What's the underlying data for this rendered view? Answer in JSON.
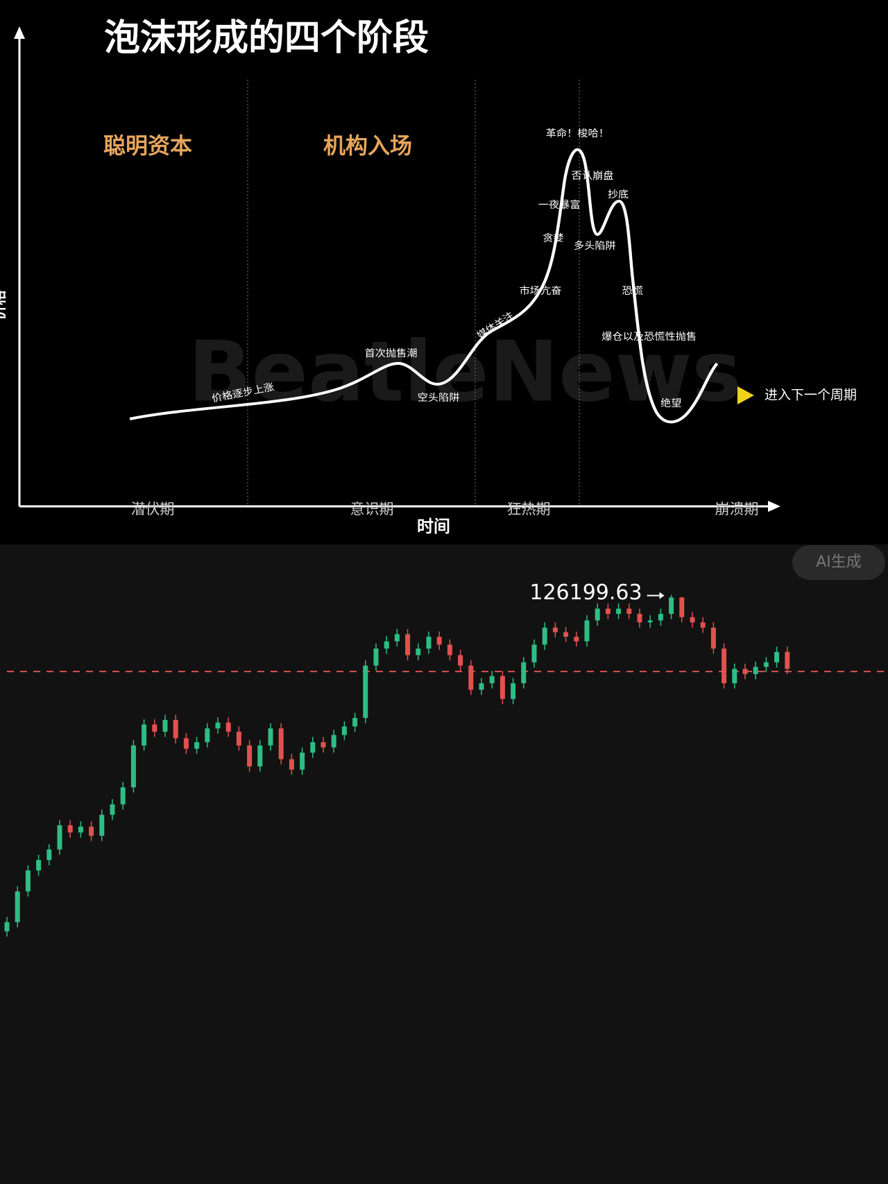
{
  "diagram": {
    "title": "泡沫形成的四个阶段",
    "y_axis_label": "价格",
    "x_axis_label": "时间",
    "headers": [
      "聪明资本",
      "机构入场"
    ],
    "phases": [
      "潜伏期",
      "意识期",
      "狂热期",
      "崩溃期"
    ],
    "annotations": [
      "革命！梭哈！",
      "否认崩盘",
      "抄底",
      "一夜暴富",
      "贪婪",
      "多头陷阱",
      "市场亢奋",
      "恐慌",
      "媒体关注",
      "爆仓以及恐慌性抛售",
      "首次抛售潮",
      "空头陷阱",
      "价格逐步上涨",
      "绝望"
    ],
    "next_cycle": "进入下一个周期",
    "watermark": "BeatleNews",
    "badge": "AI生成"
  },
  "chart_data": {
    "type": "candlestick",
    "up_color": "#2ebd85",
    "down_color": "#e0524f",
    "ylim": [
      36200,
      133900
    ],
    "hline": 114500,
    "open": [
      74800,
      76200,
      80900,
      84100,
      85700,
      87300,
      91000,
      89900,
      90800,
      89400,
      92600,
      94200,
      96800,
      103200,
      106400,
      105300,
      107100,
      104300,
      102700,
      103700,
      105800,
      106700,
      105300,
      103200,
      100000,
      103200,
      105800,
      101100,
      99500,
      102100,
      103700,
      102900,
      104800,
      106100,
      107400,
      115400,
      118000,
      119100,
      120200,
      117000,
      118000,
      119800,
      118600,
      117000,
      115400,
      111700,
      112700,
      113800,
      110300,
      112700,
      115900,
      118600,
      121200,
      120500,
      119800,
      119100,
      122300,
      124100,
      123300,
      124100,
      123300,
      122000,
      122300,
      123300,
      125800,
      122800,
      122000,
      121200,
      118000,
      112700,
      114900,
      114100,
      115200,
      115900,
      117500
    ],
    "high": [
      77000,
      81700,
      84900,
      86500,
      88100,
      91800,
      91800,
      91600,
      91600,
      93400,
      95000,
      97600,
      104000,
      107200,
      107200,
      107900,
      107900,
      105100,
      104500,
      106600,
      107500,
      107500,
      106100,
      104000,
      104000,
      106600,
      106600,
      101900,
      102900,
      104500,
      104500,
      105600,
      106900,
      108200,
      116200,
      118800,
      119900,
      121000,
      121000,
      118800,
      120600,
      120600,
      119400,
      117800,
      116200,
      113500,
      114600,
      114600,
      113500,
      116700,
      119400,
      122000,
      122000,
      121300,
      120600,
      123100,
      124900,
      124900,
      124900,
      124900,
      124100,
      123100,
      124100,
      126199.63,
      125900,
      123600,
      122800,
      122000,
      118800,
      115700,
      115700,
      116000,
      116700,
      118300,
      118300
    ],
    "low": [
      74000,
      75400,
      80100,
      83300,
      84900,
      86500,
      89100,
      89100,
      88600,
      88600,
      91800,
      93400,
      96000,
      102400,
      104500,
      104500,
      103500,
      101900,
      101900,
      102900,
      105000,
      104500,
      102400,
      99200,
      99200,
      102400,
      100300,
      98700,
      98700,
      101300,
      102100,
      102100,
      104000,
      105300,
      106600,
      114600,
      117200,
      118300,
      116200,
      116200,
      117200,
      117800,
      116200,
      114600,
      110900,
      110900,
      111900,
      109500,
      109500,
      111900,
      115100,
      117800,
      119700,
      119000,
      118300,
      118300,
      121500,
      122500,
      122500,
      122500,
      121200,
      121200,
      121500,
      122500,
      122000,
      121200,
      120400,
      117200,
      111900,
      111900,
      113300,
      113300,
      114400,
      115100,
      114100
    ],
    "close": [
      76200,
      80900,
      84100,
      85700,
      87300,
      91000,
      89900,
      90800,
      89400,
      92600,
      94200,
      96800,
      103200,
      106400,
      105300,
      107100,
      104300,
      102700,
      103700,
      105800,
      106700,
      105300,
      103200,
      100000,
      103200,
      105800,
      101100,
      99500,
      102100,
      103700,
      102900,
      104800,
      106100,
      107400,
      115400,
      118000,
      119100,
      120200,
      117000,
      118000,
      119800,
      118600,
      117000,
      115400,
      111700,
      112700,
      113800,
      110300,
      112700,
      115900,
      118600,
      121200,
      120500,
      119800,
      119100,
      122300,
      124100,
      123300,
      124100,
      123300,
      122000,
      122300,
      123300,
      125800,
      122800,
      122000,
      121200,
      118000,
      112700,
      114900,
      114100,
      115200,
      115900,
      117500,
      114900
    ]
  }
}
